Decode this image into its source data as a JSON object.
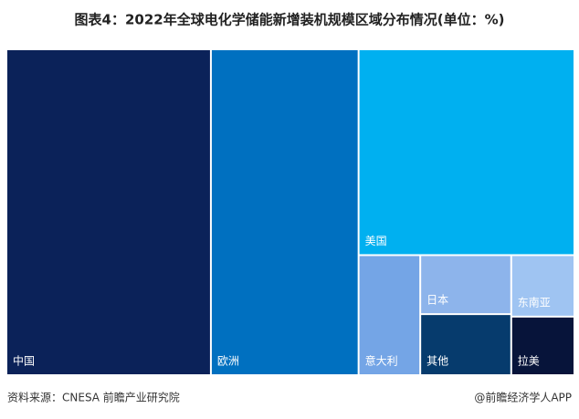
{
  "chart_data": {
    "type": "treemap",
    "title": "图表4：2022年全球电化学储能新增装机规模区域分布情况(单位：%)",
    "categories": [
      "中国",
      "欧洲",
      "美国",
      "意大利",
      "日本",
      "其他",
      "东南亚",
      "拉美"
    ],
    "values": [
      36,
      26,
      24,
      4,
      2.9,
      3,
      2.1,
      2
    ],
    "colors": [
      "#0b2259",
      "#0070c0",
      "#00b0f0",
      "#74a5e6",
      "#8db4eb",
      "#063b6d",
      "#9fc4f2",
      "#07143a"
    ],
    "source": "资料来源：CNESA 前瞻产业研究院",
    "credit": "@前瞻经济学人APP"
  }
}
